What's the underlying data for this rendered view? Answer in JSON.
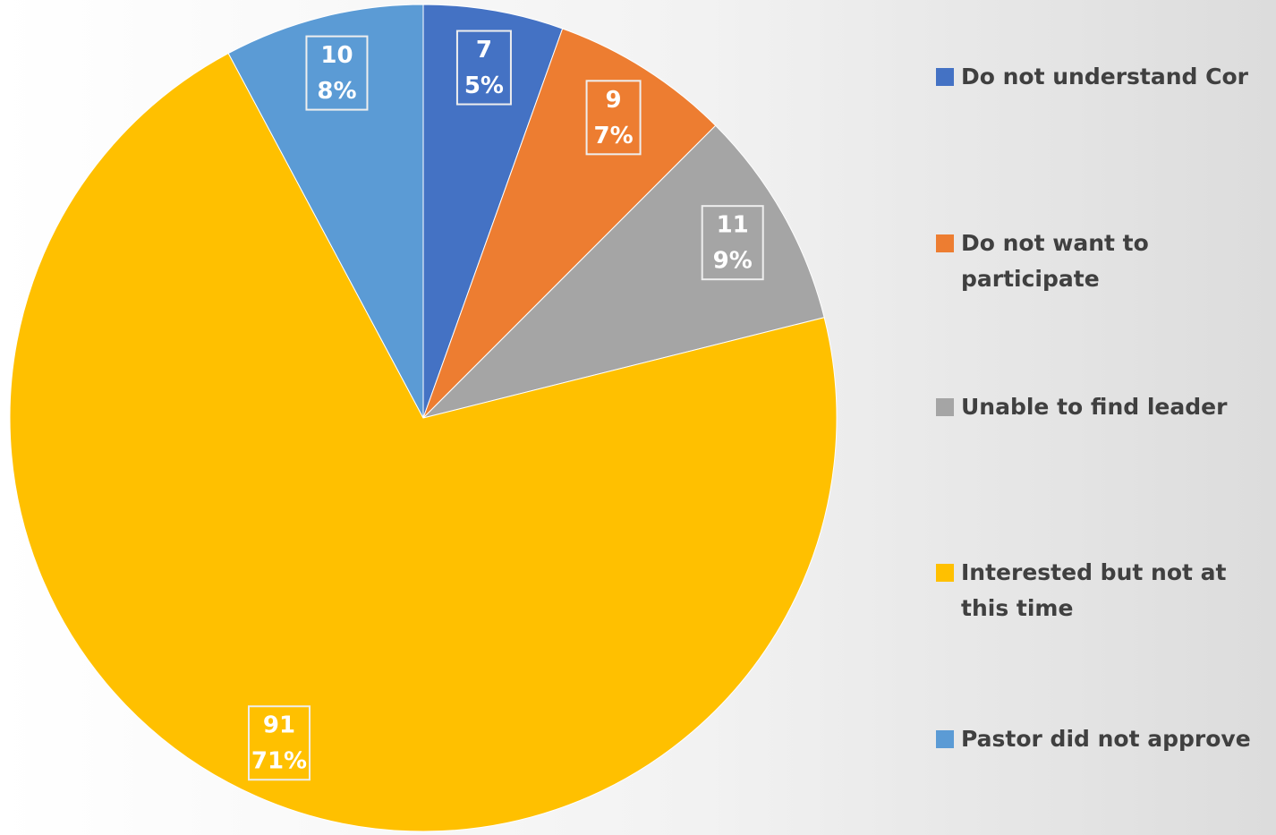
{
  "chart_data": {
    "type": "pie",
    "categories": [
      "Do not understand Cor",
      "Do not want to participate",
      "Unable to find leader",
      "Interested but not at this time",
      "Pastor did not approve"
    ],
    "values": [
      7,
      9,
      11,
      91,
      10
    ],
    "percent_labels": [
      "5%",
      "7%",
      "9%",
      "71%",
      "8%"
    ],
    "colors": [
      "#4472c4",
      "#ed7d31",
      "#a5a5a5",
      "#ffc000",
      "#5b9bd5"
    ],
    "legend": "right"
  }
}
